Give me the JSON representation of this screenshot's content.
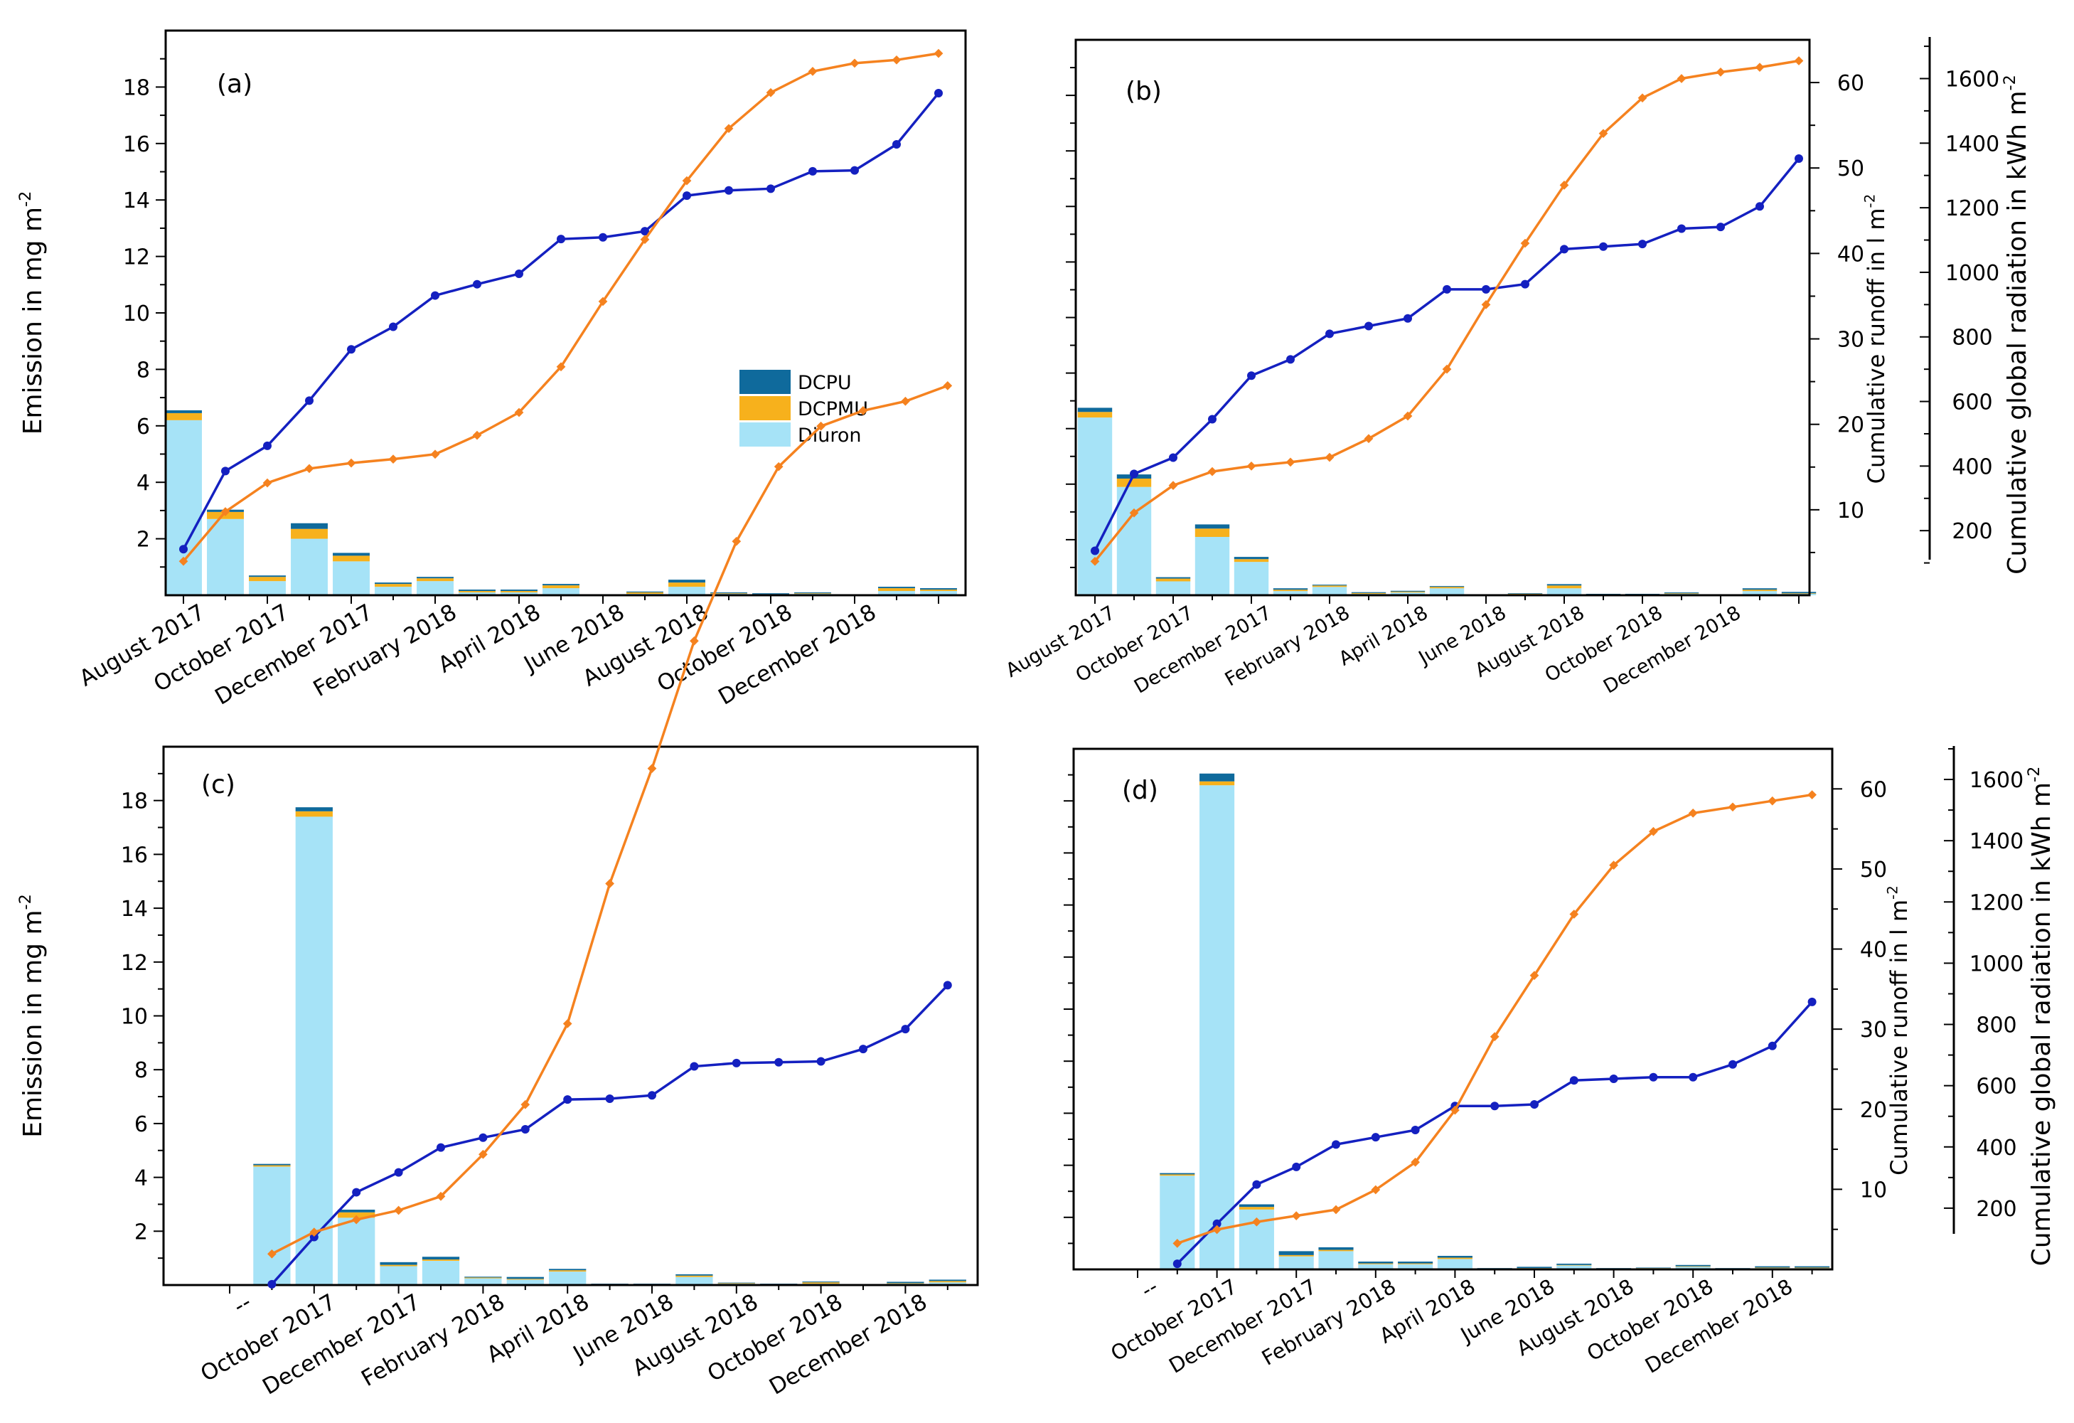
{
  "colors": {
    "diuron": "#a6e3f7",
    "dcpmu": "#f7b11c",
    "dcpu": "#0f6a9c",
    "runoff": "#1420c0",
    "radiation": "#f5821f",
    "axis": "#000000"
  },
  "chart_data": [
    {
      "type": "bar",
      "panel_label": "(a)",
      "title": "",
      "ylabel": "Emission in mg m⁻²",
      "ylim": [
        0,
        20
      ],
      "yticks": [
        "2",
        "4",
        "6",
        "8",
        "10",
        "12",
        "14",
        "16",
        "18"
      ],
      "tick_labels": [
        "August 2017",
        "October 2017",
        "December 2017",
        "February 2018",
        "April 2018",
        "June 2018",
        "August 2018",
        "October 2018",
        "December 2018"
      ],
      "legend": {
        "placement": "center-right",
        "entries": [
          "DCPU",
          "DCPMU",
          "Diuron"
        ]
      },
      "series": [
        {
          "name": "Diuron",
          "values": [
            6.2,
            2.7,
            0.5,
            2.0,
            1.2,
            0.3,
            0.5,
            0.1,
            0.1,
            0.25,
            0.0,
            0.05,
            0.3,
            0.05,
            0.02,
            0.05,
            0.0,
            0.15,
            0.15
          ]
        },
        {
          "name": "DCPMU",
          "values": [
            0.25,
            0.25,
            0.15,
            0.35,
            0.2,
            0.1,
            0.1,
            0.05,
            0.05,
            0.1,
            0.01,
            0.05,
            0.15,
            0.02,
            0.02,
            0.02,
            0.0,
            0.1,
            0.05
          ]
        },
        {
          "name": "DCPU",
          "values": [
            0.1,
            0.08,
            0.05,
            0.2,
            0.1,
            0.05,
            0.05,
            0.05,
            0.05,
            0.05,
            0.02,
            0.03,
            0.1,
            0.03,
            0.03,
            0.03,
            0.0,
            0.05,
            0.05
          ]
        }
      ],
      "runoff_label": "",
      "runoff_ylim": [
        0,
        65
      ],
      "runoff_yticks": [],
      "runoff": [
        5.3,
        14.3,
        17.2,
        22.4,
        28.3,
        30.9,
        34.5,
        35.8,
        37.0,
        41.0,
        41.2,
        41.9,
        46.0,
        46.6,
        46.8,
        48.8,
        48.9,
        51.9,
        57.8
      ],
      "radiation_label": "",
      "radiation_ylim": [
        0,
        1730
      ],
      "radiation_yticks": [],
      "radiation": [
        104,
        256,
        344,
        388,
        405,
        417,
        432,
        490,
        560,
        700,
        900,
        1090,
        1270,
        1430,
        1540,
        1605,
        1630,
        1640,
        1660
      ]
    },
    {
      "type": "bar",
      "panel_label": "(b)",
      "title": "",
      "ylabel": "",
      "ylim": [
        0,
        20
      ],
      "yticks": [],
      "tick_labels": [
        "August 2017",
        "October 2017",
        "December 2017",
        "February 2018",
        "April 2018",
        "June 2018",
        "August 2018",
        "October 2018",
        "December 2018"
      ],
      "legend": null,
      "series": [
        {
          "name": "Diuron",
          "values": [
            6.4,
            3.9,
            0.5,
            2.1,
            1.2,
            0.15,
            0.3,
            0.05,
            0.1,
            0.25,
            0.0,
            0.03,
            0.25,
            0.02,
            0.02,
            0.05,
            0.0,
            0.15,
            0.05
          ]
        },
        {
          "name": "DCPMU",
          "values": [
            0.2,
            0.3,
            0.1,
            0.3,
            0.1,
            0.05,
            0.05,
            0.03,
            0.03,
            0.05,
            0.0,
            0.02,
            0.1,
            0.01,
            0.01,
            0.02,
            0.0,
            0.05,
            0.02
          ]
        },
        {
          "name": "DCPU",
          "values": [
            0.15,
            0.15,
            0.05,
            0.15,
            0.08,
            0.05,
            0.03,
            0.03,
            0.03,
            0.03,
            0.0,
            0.02,
            0.05,
            0.02,
            0.02,
            0.03,
            0.0,
            0.05,
            0.05
          ]
        }
      ],
      "runoff_label": "Cumulative runoff in l m⁻²",
      "runoff_ylim": [
        0,
        65
      ],
      "runoff_yticks": [
        "10",
        "20",
        "30",
        "40",
        "50",
        "60"
      ],
      "runoff": [
        5.2,
        14.2,
        16.1,
        20.6,
        25.7,
        27.6,
        30.6,
        31.5,
        32.4,
        35.8,
        35.8,
        36.4,
        40.5,
        40.8,
        41.1,
        42.9,
        43.1,
        45.5,
        51.1
      ],
      "radiation_label": "Cumulative global radiation in kWh m⁻²",
      "radiation_ylim": [
        0,
        1720
      ],
      "radiation_yticks": [
        "200",
        "400",
        "600",
        "800",
        "1000",
        "1200",
        "1400",
        "1600"
      ],
      "radiation_yticks_values": [
        200,
        400,
        600,
        800,
        1000,
        1200,
        1400,
        1600
      ],
      "radiation": [
        105,
        255,
        340,
        383,
        400,
        412,
        427,
        485,
        555,
        700,
        900,
        1090,
        1270,
        1430,
        1540,
        1600,
        1620,
        1635,
        1655
      ]
    },
    {
      "type": "bar",
      "panel_label": "(c)",
      "title": "",
      "ylabel": "Emission in mg m⁻²",
      "ylim": [
        0,
        20
      ],
      "yticks": [
        "2",
        "4",
        "6",
        "8",
        "10",
        "12",
        "14",
        "16",
        "18"
      ],
      "tick_labels": [
        "--",
        "October 2017",
        "December 2017",
        "February 2018",
        "April 2018",
        "June 2018",
        "August 2018",
        "October 2018",
        "December 2018"
      ],
      "legend": null,
      "series": [
        {
          "name": "Diuron",
          "values": [
            0,
            4.4,
            17.4,
            2.5,
            0.7,
            0.9,
            0.25,
            0.2,
            0.5,
            0.03,
            0.02,
            0.3,
            0.05,
            0.03,
            0.05,
            0.0,
            0.05,
            0.1
          ]
        },
        {
          "name": "DCPMU",
          "values": [
            0,
            0.05,
            0.2,
            0.2,
            0.05,
            0.05,
            0.03,
            0.03,
            0.05,
            0.01,
            0.01,
            0.05,
            0.02,
            0.01,
            0.05,
            0.0,
            0.02,
            0.05
          ]
        },
        {
          "name": "DCPU",
          "values": [
            0,
            0.05,
            0.15,
            0.1,
            0.1,
            0.1,
            0.03,
            0.07,
            0.05,
            0.01,
            0.02,
            0.05,
            0.02,
            0.01,
            0.03,
            0.0,
            0.05,
            0.05
          ]
        }
      ],
      "runoff_label": "",
      "runoff_ylim": [
        0,
        65
      ],
      "runoff_yticks": [],
      "runoff": [
        null,
        0.1,
        5.8,
        11.2,
        13.6,
        16.6,
        17.8,
        18.8,
        22.4,
        22.5,
        22.9,
        26.4,
        26.8,
        26.9,
        27.0,
        28.5,
        30.9,
        36.2
      ],
      "radiation_label": "",
      "radiation_ylim": [
        0,
        1730
      ],
      "radiation_yticks": [],
      "radiation": [
        null,
        100,
        170,
        210,
        240,
        285,
        420,
        580,
        840,
        1290,
        1660,
        2070,
        2390,
        2630,
        2760,
        2810,
        2840,
        2890
      ]
    },
    {
      "type": "bar",
      "panel_label": "(d)",
      "title": "",
      "ylabel": "",
      "ylim": [
        0,
        20
      ],
      "yticks": [],
      "tick_labels": [
        "--",
        "October 2017",
        "December 2017",
        "February 2018",
        "April 2018",
        "June 2018",
        "August 2018",
        "October 2018",
        "December 2018"
      ],
      "legend": null,
      "series": [
        {
          "name": "Diuron",
          "values": [
            0,
            3.6,
            18.6,
            2.3,
            0.5,
            0.7,
            0.2,
            0.2,
            0.4,
            0.02,
            0.03,
            0.15,
            0.03,
            0.03,
            0.1,
            0.02,
            0.05,
            0.05
          ]
        },
        {
          "name": "DCPMU",
          "values": [
            0,
            0.05,
            0.15,
            0.1,
            0.05,
            0.05,
            0.03,
            0.03,
            0.05,
            0.01,
            0.02,
            0.02,
            0.01,
            0.02,
            0.02,
            0.01,
            0.02,
            0.02
          ]
        },
        {
          "name": "DCPU",
          "values": [
            0,
            0.05,
            0.3,
            0.1,
            0.15,
            0.1,
            0.07,
            0.07,
            0.07,
            0.02,
            0.05,
            0.05,
            0.01,
            0.02,
            0.05,
            0.02,
            0.05,
            0.05
          ]
        }
      ],
      "runoff_label": "Cumulative runoff in l m⁻²",
      "runoff_ylim": [
        0,
        65
      ],
      "runoff_yticks": [
        "10",
        "20",
        "30",
        "40",
        "50",
        "60"
      ],
      "runoff": [
        null,
        0.7,
        5.7,
        10.6,
        12.8,
        15.6,
        16.5,
        17.4,
        20.4,
        20.4,
        20.6,
        23.6,
        23.8,
        24.0,
        24.0,
        25.6,
        27.9,
        33.4
      ],
      "radiation_label": "Cumulative global radiation in kWh m⁻²",
      "radiation_ylim": [
        0,
        1700
      ],
      "radiation_yticks": [
        "200",
        "400",
        "600",
        "800",
        "1000",
        "1200",
        "1400",
        "1600"
      ],
      "radiation_yticks_values": [
        200,
        400,
        600,
        800,
        1000,
        1200,
        1400,
        1600
      ],
      "radiation": [
        null,
        85,
        130,
        155,
        175,
        195,
        260,
        350,
        520,
        760,
        960,
        1160,
        1320,
        1430,
        1490,
        1510,
        1530,
        1550
      ]
    }
  ]
}
